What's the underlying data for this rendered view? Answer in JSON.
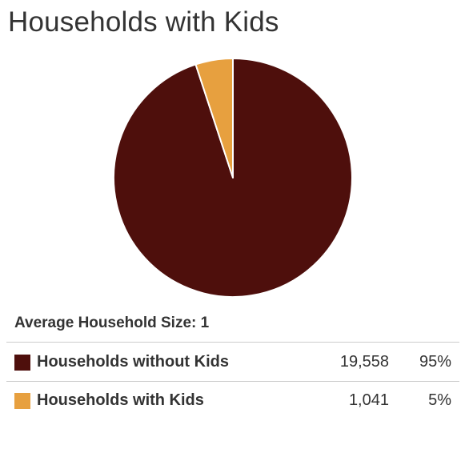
{
  "title": "Households with Kids",
  "average_household_size": "Average Household Size: 1",
  "colors": {
    "without_kids": "#4e0f0c",
    "with_kids": "#e7a03f"
  },
  "legend": [
    {
      "label": "Households without Kids",
      "count": "19,558",
      "percent": "95%",
      "color": "#4e0f0c"
    },
    {
      "label": "Households with Kids",
      "count": "1,041",
      "percent": "5%",
      "color": "#e7a03f"
    }
  ],
  "chart_data": {
    "type": "pie",
    "title": "Households with Kids",
    "categories": [
      "Households without Kids",
      "Households with Kids"
    ],
    "values": [
      19558,
      1041
    ],
    "percents": [
      95,
      5
    ],
    "colors": [
      "#4e0f0c",
      "#e7a03f"
    ]
  }
}
